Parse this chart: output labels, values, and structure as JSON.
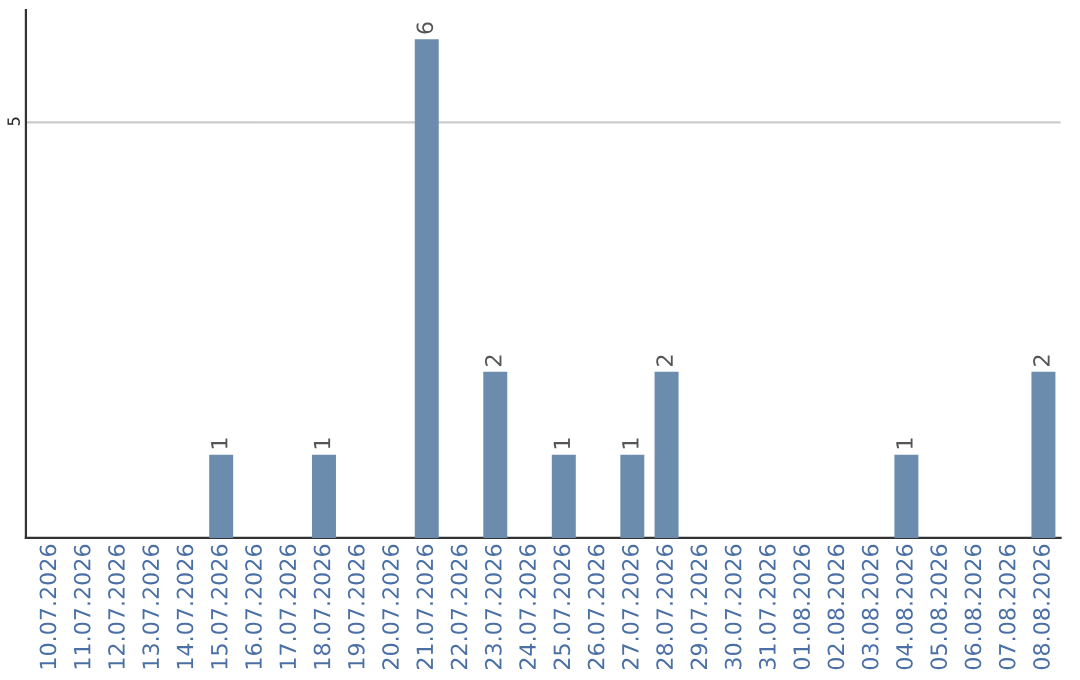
{
  "chart_data": {
    "type": "bar",
    "categories": [
      "10.07.2026",
      "11.07.2026",
      "12.07.2026",
      "13.07.2026",
      "14.07.2026",
      "15.07.2026",
      "16.07.2026",
      "17.07.2026",
      "18.07.2026",
      "19.07.2026",
      "20.07.2026",
      "21.07.2026",
      "22.07.2026",
      "23.07.2026",
      "24.07.2026",
      "25.07.2026",
      "26.07.2026",
      "27.07.2026",
      "28.07.2026",
      "29.07.2026",
      "30.07.2026",
      "31.07.2026",
      "01.08.2026",
      "02.08.2026",
      "03.08.2026",
      "04.08.2026",
      "05.08.2026",
      "06.08.2026",
      "07.08.2026",
      "08.08.2026"
    ],
    "values": [
      0,
      0,
      0,
      0,
      0,
      1,
      0,
      0,
      1,
      0,
      0,
      6,
      0,
      2,
      0,
      1,
      0,
      1,
      2,
      0,
      0,
      0,
      0,
      0,
      0,
      1,
      0,
      0,
      0,
      2
    ],
    "value_labels": [
      null,
      null,
      null,
      null,
      null,
      "1",
      null,
      null,
      "1",
      null,
      null,
      "6",
      null,
      "2",
      null,
      "1",
      null,
      "1",
      "2",
      null,
      null,
      null,
      null,
      null,
      null,
      "1",
      null,
      null,
      null,
      "2"
    ],
    "color": "#6b8cad",
    "ylim": [
      0,
      6.35
    ],
    "yticks": [
      5
    ],
    "grid": "y",
    "legend": false
  }
}
